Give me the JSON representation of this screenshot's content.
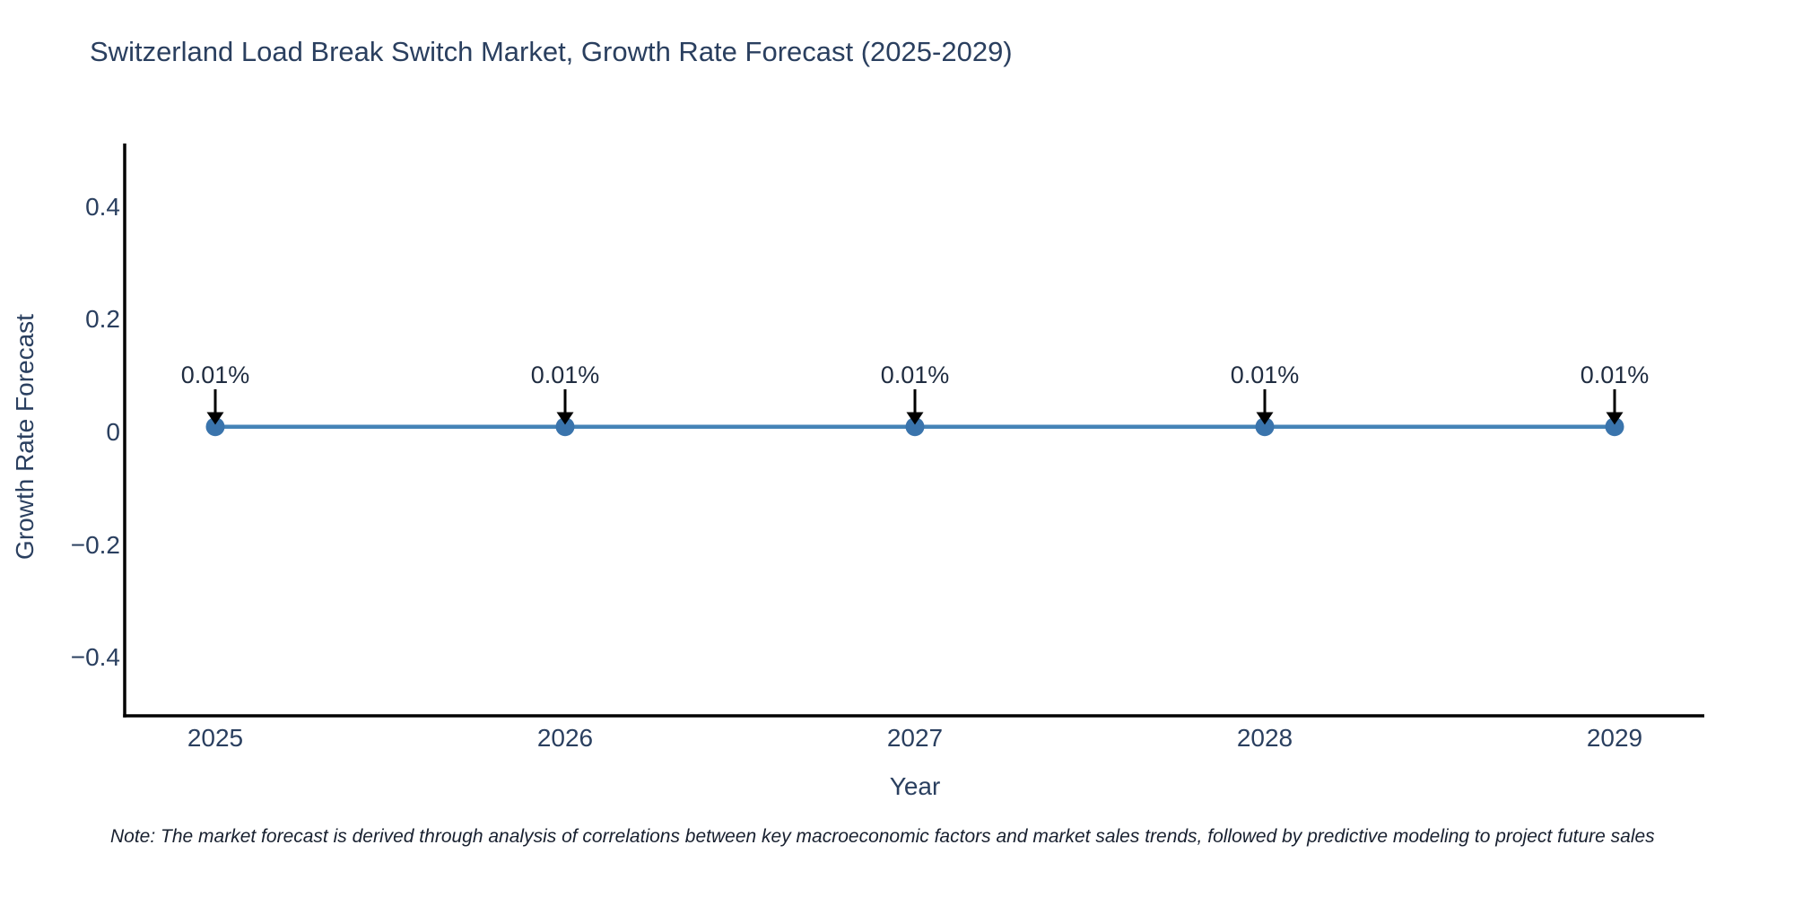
{
  "title": "Switzerland Load Break Switch Market, Growth Rate Forecast (2025-2029)",
  "note": "Note: The market forecast is derived through analysis of correlations between key macroeconomic factors and market sales trends, followed by predictive modeling to project future sales",
  "chart_data": {
    "type": "line",
    "title": "Switzerland Load Break Switch Market, Growth Rate Forecast (2025-2029)",
    "xlabel": "Year",
    "ylabel": "Growth Rate Forecast",
    "x": [
      2025,
      2026,
      2027,
      2028,
      2029
    ],
    "x_tick_labels": [
      "2025",
      "2026",
      "2027",
      "2028",
      "2029"
    ],
    "series": [
      {
        "name": "Growth Rate Forecast",
        "values": [
          0.01,
          0.01,
          0.01,
          0.01,
          0.01
        ],
        "unit": "percent"
      }
    ],
    "annotations": [
      "0.01%",
      "0.01%",
      "0.01%",
      "0.01%",
      "0.01%"
    ],
    "y_ticks": [
      0.4,
      0.2,
      0,
      -0.2,
      -0.4
    ],
    "y_tick_labels": [
      "0.4",
      "0.2",
      "0",
      "−0.2",
      "−0.4"
    ],
    "ylim": [
      -0.5,
      0.51
    ],
    "xlim": [
      2024.75,
      2029.25
    ],
    "grid": false,
    "legend": "none",
    "colors": {
      "line": "#4583b7",
      "marker": "#3a74ac",
      "axis_line": "#000000",
      "tick_text": "#2a3f5f",
      "annotation_text": "#1f2c40",
      "arrow": "#000000",
      "note_text": "#18202f",
      "background": "#ffffff"
    }
  }
}
